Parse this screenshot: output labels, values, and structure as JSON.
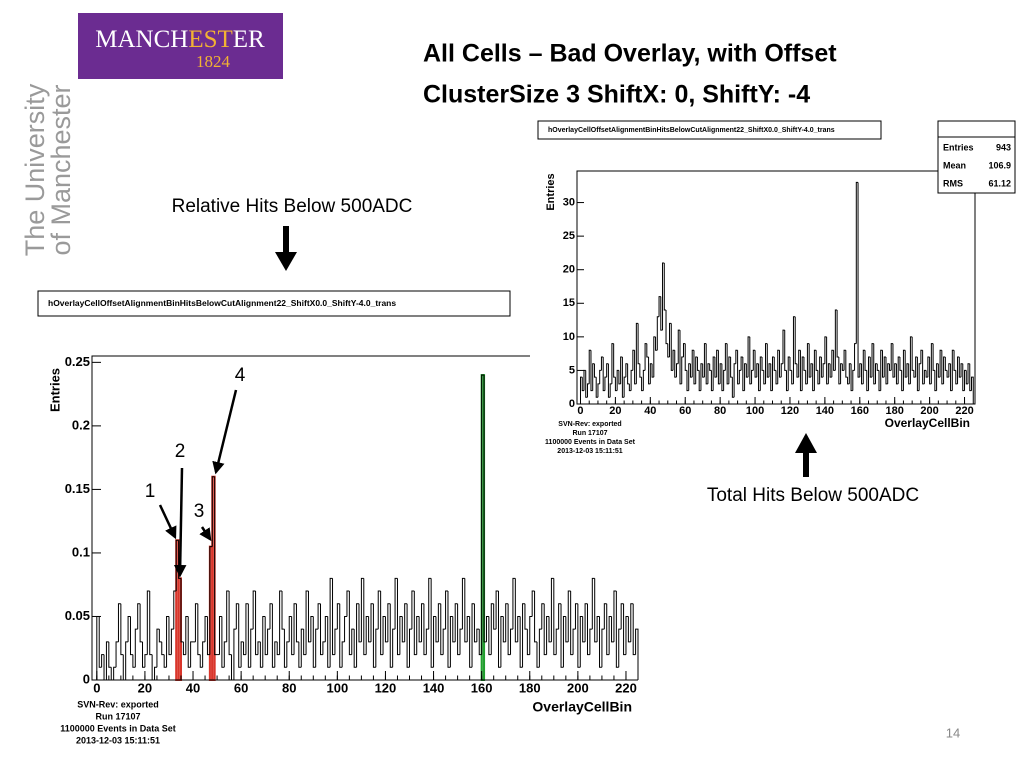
{
  "logo": {
    "parts": [
      "MANCH",
      "EST",
      "ER"
    ],
    "year": "1824",
    "university": [
      "The University",
      "of Manchester"
    ]
  },
  "slide": {
    "title": [
      "All Cells – Bad Overlay, with Offset",
      "ClusterSize 3 ShiftX: 0, ShiftY: -4"
    ],
    "annotations": [
      "Relative Hits Below 500ADC",
      "Total Hits Below 500ADC"
    ],
    "markers": [
      "1",
      "2",
      "3",
      "4"
    ],
    "page_number": "14"
  },
  "chart_data": [
    {
      "type": "histogram",
      "title": "hOverlayCellOffsetAlignmentBinHitsBelowCutAlignment22_ShiftX0.0_ShiftY-4.0_trans",
      "x_label": "OverlayCellBin",
      "y_label": "Entries",
      "footer": [
        "SVN-Rev: exported",
        "Run 17107",
        "1100000 Events in Data Set",
        "2013-12-03 15:11:51"
      ],
      "color": "#000000",
      "xlim": [
        -2,
        225
      ],
      "ylim": [
        0,
        0.255
      ],
      "xticks": [
        0,
        20,
        40,
        60,
        80,
        100,
        120,
        140,
        160,
        180,
        200,
        220
      ],
      "yticks": [
        0,
        0.05,
        0.1,
        0.15,
        0.2,
        0.25
      ],
      "bins": [
        0,
        1,
        2,
        3,
        4,
        5,
        6,
        7,
        8,
        9,
        10,
        11,
        12,
        13,
        14,
        15,
        16,
        17,
        18,
        19,
        20,
        21,
        22,
        23,
        24,
        25,
        26,
        27,
        28,
        29,
        30,
        31,
        32,
        33,
        34,
        35,
        36,
        37,
        38,
        39,
        40,
        41,
        42,
        43,
        44,
        45,
        46,
        47,
        48,
        49,
        50,
        51,
        52,
        53,
        54,
        55,
        56,
        57,
        58,
        59,
        60,
        61,
        62,
        63,
        64,
        65,
        66,
        67,
        68,
        69,
        70,
        71,
        72,
        73,
        74,
        75,
        76,
        77,
        78,
        79,
        80,
        81,
        82,
        83,
        84,
        85,
        86,
        87,
        88,
        89,
        90,
        91,
        92,
        93,
        94,
        95,
        96,
        97,
        98,
        99,
        100,
        101,
        102,
        103,
        104,
        105,
        106,
        107,
        108,
        109,
        110,
        111,
        112,
        113,
        114,
        115,
        116,
        117,
        118,
        119,
        120,
        121,
        122,
        123,
        124,
        125,
        126,
        127,
        128,
        129,
        130,
        131,
        132,
        133,
        134,
        135,
        136,
        137,
        138,
        139,
        140,
        141,
        142,
        143,
        144,
        145,
        146,
        147,
        148,
        149,
        150,
        151,
        152,
        153,
        154,
        155,
        156,
        157,
        158,
        159,
        160,
        161,
        162,
        163,
        164,
        165,
        166,
        167,
        168,
        169,
        170,
        171,
        172,
        173,
        174,
        175,
        176,
        177,
        178,
        179,
        180,
        181,
        182,
        183,
        184,
        185,
        186,
        187,
        188,
        189,
        190,
        191,
        192,
        193,
        194,
        195,
        196,
        197,
        198,
        199,
        200,
        201,
        202,
        203,
        204,
        205,
        206,
        207,
        208,
        209,
        210,
        211,
        212,
        213,
        214,
        215,
        216,
        217,
        218,
        219,
        220,
        221,
        222,
        223,
        224,
        225
      ],
      "values": [
        0.05,
        0.01,
        0.02,
        0,
        0.03,
        0.01,
        0,
        0.01,
        0.03,
        0.06,
        0.02,
        0,
        0.03,
        0.05,
        0.02,
        0.01,
        0.04,
        0.06,
        0.03,
        0.01,
        0.02,
        0.07,
        0.02,
        0,
        0.01,
        0.04,
        0.03,
        0.02,
        0.01,
        0.05,
        0.02,
        0.04,
        0.07,
        0.11,
        0.08,
        0.03,
        0.02,
        0.05,
        0.01,
        0.03,
        0.03,
        0.06,
        0.02,
        0.01,
        0.03,
        0.05,
        0.02,
        0.105,
        0.16,
        0.02,
        0.02,
        0.05,
        0.01,
        0.03,
        0.07,
        0.02,
        0,
        0.04,
        0.06,
        0.01,
        0.03,
        0.02,
        0.06,
        0.01,
        0.04,
        0.07,
        0.02,
        0.03,
        0.01,
        0.05,
        0.02,
        0.04,
        0.06,
        0.01,
        0.03,
        0.02,
        0.07,
        0.04,
        0.01,
        0.03,
        0.05,
        0.02,
        0.06,
        0.03,
        0.01,
        0.04,
        0.02,
        0.07,
        0.03,
        0.05,
        0.01,
        0.04,
        0.06,
        0.02,
        0.03,
        0.05,
        0.01,
        0.08,
        0.02,
        0.04,
        0.06,
        0.01,
        0.03,
        0.05,
        0.07,
        0.02,
        0.04,
        0.01,
        0.06,
        0.03,
        0.08,
        0.02,
        0.05,
        0.03,
        0.06,
        0.01,
        0.04,
        0.07,
        0.02,
        0.05,
        0.03,
        0.06,
        0.01,
        0.04,
        0.08,
        0.02,
        0.05,
        0.03,
        0.06,
        0.01,
        0.04,
        0.07,
        0.02,
        0.05,
        0.03,
        0.06,
        0.02,
        0.04,
        0.08,
        0.01,
        0.05,
        0.03,
        0.06,
        0.02,
        0.04,
        0.07,
        0.01,
        0.05,
        0.03,
        0.06,
        0.02,
        0.04,
        0.08,
        0.03,
        0.05,
        0.01,
        0.06,
        0.03,
        0.04,
        0.02,
        0.24,
        0.03,
        0.05,
        0.02,
        0.06,
        0.04,
        0.07,
        0.01,
        0.05,
        0.03,
        0.06,
        0.02,
        0.04,
        0.08,
        0.03,
        0.05,
        0.01,
        0.06,
        0.04,
        0.02,
        0.05,
        0.07,
        0.03,
        0.01,
        0.04,
        0.06,
        0.02,
        0.05,
        0.03,
        0.08,
        0.02,
        0.04,
        0.06,
        0.01,
        0.05,
        0.03,
        0.07,
        0.02,
        0.04,
        0.06,
        0.01,
        0.05,
        0.03,
        0.06,
        0.02,
        0.04,
        0.08,
        0.03,
        0.05,
        0.01,
        0.04,
        0.06,
        0.02,
        0.05,
        0.03,
        0.07,
        0.01,
        0.04,
        0.06,
        0.02,
        0.05,
        0.03,
        0.06,
        0.02,
        0.04
      ],
      "highlights": [
        {
          "x": 33,
          "color": "#d9362b"
        },
        {
          "x": 34,
          "color": "#d9362b"
        },
        {
          "x": 47,
          "color": "#d9362b"
        },
        {
          "x": 48,
          "color": "#d9362b"
        },
        {
          "x": 160,
          "color": "#1f9e2c"
        }
      ]
    },
    {
      "type": "histogram",
      "title": "hOverlayCellOffsetAlignmentBinHitsBelowCutAlignment22_ShiftX0.0_ShiftY-4.0_trans",
      "x_label": "OverlayCellBin",
      "y_label": "Entries",
      "footer": [
        "SVN-Rev: exported",
        "Run 17107",
        "1100000 Events in Data Set",
        "2013-12-03 15:11:51"
      ],
      "stats": [
        {
          "label": "Entries",
          "value": 943
        },
        {
          "label": "Mean",
          "value": 106.9
        },
        {
          "label": "RMS",
          "value": 61.12
        }
      ],
      "color": "#000000",
      "xlim": [
        -2,
        226
      ],
      "ylim": [
        0,
        34.7
      ],
      "xticks": [
        0,
        20,
        40,
        60,
        80,
        100,
        120,
        140,
        160,
        180,
        200,
        220
      ],
      "yticks": [
        0,
        5,
        10,
        15,
        20,
        25,
        30
      ],
      "bins": [
        0,
        1,
        2,
        3,
        4,
        5,
        6,
        7,
        8,
        9,
        10,
        11,
        12,
        13,
        14,
        15,
        16,
        17,
        18,
        19,
        20,
        21,
        22,
        23,
        24,
        25,
        26,
        27,
        28,
        29,
        30,
        31,
        32,
        33,
        34,
        35,
        36,
        37,
        38,
        39,
        40,
        41,
        42,
        43,
        44,
        45,
        46,
        47,
        48,
        49,
        50,
        51,
        52,
        53,
        54,
        55,
        56,
        57,
        58,
        59,
        60,
        61,
        62,
        63,
        64,
        65,
        66,
        67,
        68,
        69,
        70,
        71,
        72,
        73,
        74,
        75,
        76,
        77,
        78,
        79,
        80,
        81,
        82,
        83,
        84,
        85,
        86,
        87,
        88,
        89,
        90,
        91,
        92,
        93,
        94,
        95,
        96,
        97,
        98,
        99,
        100,
        101,
        102,
        103,
        104,
        105,
        106,
        107,
        108,
        109,
        110,
        111,
        112,
        113,
        114,
        115,
        116,
        117,
        118,
        119,
        120,
        121,
        122,
        123,
        124,
        125,
        126,
        127,
        128,
        129,
        130,
        131,
        132,
        133,
        134,
        135,
        136,
        137,
        138,
        139,
        140,
        141,
        142,
        143,
        144,
        145,
        146,
        147,
        148,
        149,
        150,
        151,
        152,
        153,
        154,
        155,
        156,
        157,
        158,
        159,
        160,
        161,
        162,
        163,
        164,
        165,
        166,
        167,
        168,
        169,
        170,
        171,
        172,
        173,
        174,
        175,
        176,
        177,
        178,
        179,
        180,
        181,
        182,
        183,
        184,
        185,
        186,
        187,
        188,
        189,
        190,
        191,
        192,
        193,
        194,
        195,
        196,
        197,
        198,
        199,
        200,
        201,
        202,
        203,
        204,
        205,
        206,
        207,
        208,
        209,
        210,
        211,
        212,
        213,
        214,
        215,
        216,
        217,
        218,
        219,
        220,
        221,
        222,
        223,
        224,
        225
      ],
      "values": [
        4,
        2,
        5,
        1,
        3,
        8,
        2,
        6,
        4,
        1,
        3,
        5,
        7,
        2,
        4,
        6,
        1,
        3,
        9,
        4,
        2,
        5,
        3,
        7,
        1,
        4,
        6,
        3,
        2,
        5,
        8,
        3,
        12,
        6,
        4,
        2,
        5,
        9,
        7,
        3,
        6,
        4,
        10,
        8,
        13,
        16,
        11,
        21,
        14,
        9,
        7,
        12,
        5,
        8,
        4,
        6,
        11,
        3,
        7,
        9,
        5,
        2,
        6,
        4,
        8,
        3,
        7,
        5,
        2,
        6,
        4,
        9,
        3,
        6,
        5,
        2,
        7,
        4,
        8,
        3,
        6,
        2,
        5,
        9,
        3,
        7,
        4,
        1,
        6,
        8,
        3,
        5,
        7,
        2,
        6,
        4,
        10,
        3,
        5,
        8,
        4,
        6,
        2,
        7,
        5,
        3,
        9,
        4,
        6,
        2,
        7,
        5,
        3,
        8,
        4,
        6,
        11,
        5,
        2,
        7,
        5,
        3,
        13,
        6,
        4,
        8,
        2,
        7,
        5,
        3,
        9,
        4,
        6,
        2,
        8,
        5,
        3,
        7,
        4,
        6,
        10,
        3,
        6,
        4,
        8,
        5,
        14,
        7,
        3,
        6,
        5,
        8,
        4,
        3,
        6,
        2,
        5,
        9,
        33,
        4,
        6,
        3,
        8,
        5,
        2,
        7,
        4,
        9,
        3,
        6,
        5,
        2,
        8,
        4,
        7,
        3,
        6,
        5,
        9,
        4,
        6,
        3,
        7,
        5,
        2,
        8,
        4,
        6,
        3,
        10,
        5,
        4,
        7,
        2,
        6,
        8,
        3,
        5,
        4,
        7,
        3,
        9,
        5,
        2,
        6,
        4,
        8,
        3,
        7,
        5,
        4,
        6,
        2,
        8,
        5,
        3,
        7,
        4,
        6,
        2,
        5,
        3,
        6,
        2,
        4
      ]
    }
  ]
}
